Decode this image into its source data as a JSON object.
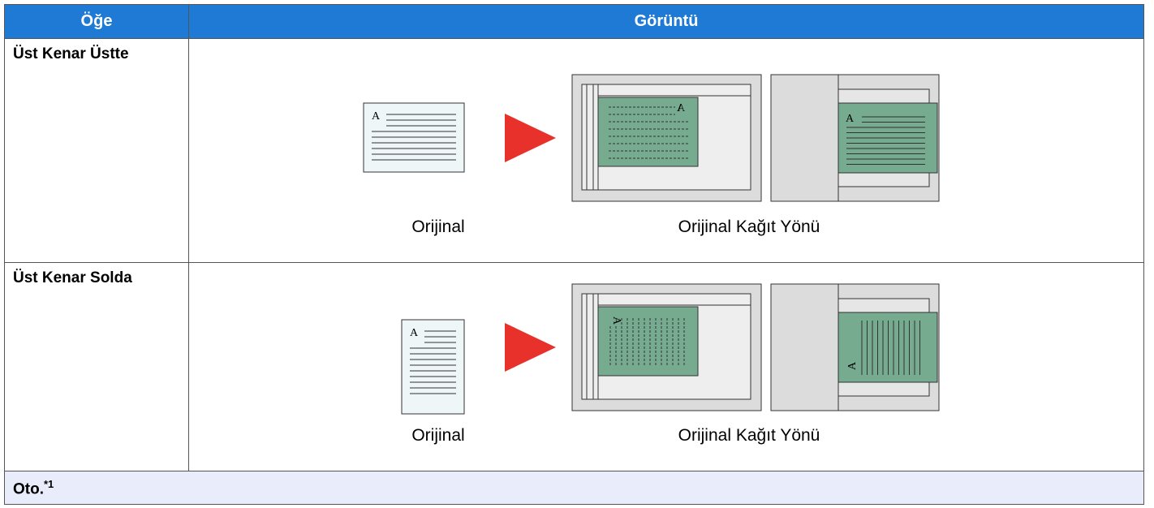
{
  "header": {
    "columns": [
      "Öğe",
      "Görüntü"
    ]
  },
  "rows": [
    {
      "item": "Üst Kenar Üstte",
      "labels": [
        "Orijinal",
        "Orijinal Kağıt Yönü"
      ]
    },
    {
      "item": "Üst Kenar Solda",
      "labels": [
        "Orijinal",
        "Orijinal Kağıt Yönü"
      ]
    }
  ],
  "footer": {
    "item": "Oto.",
    "note": "*1"
  },
  "icon_letter": "A"
}
